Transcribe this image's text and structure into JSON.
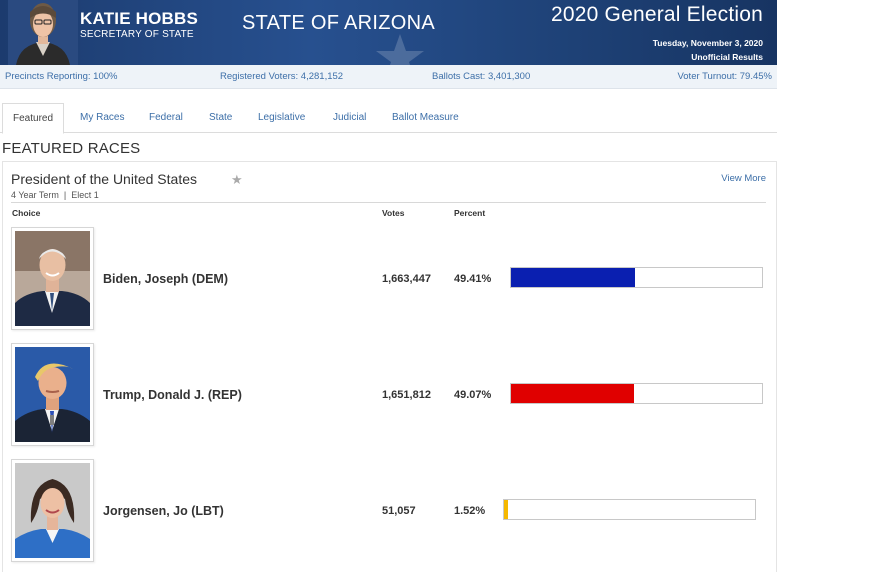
{
  "header": {
    "official_name": "KATIE HOBBS",
    "official_title": "SECRETARY OF STATE",
    "state": "STATE OF ARIZONA",
    "election": "2020 General Election",
    "date": "Tuesday, November 3, 2020",
    "status": "Unofficial Results"
  },
  "stats": {
    "precincts": "Precincts Reporting: 100%",
    "registered": "Registered Voters: 4,281,152",
    "ballots": "Ballots Cast: 3,401,300",
    "turnout": "Voter Turnout: 79.45%"
  },
  "tabs": [
    "Featured",
    "My Races",
    "Federal",
    "State",
    "Legislative",
    "Judicial",
    "Ballot Measure"
  ],
  "featured_heading": "FEATURED RACES",
  "race": {
    "title": "President of the United States",
    "star": "★",
    "meta": "4 Year Term  |  Elect 1",
    "view_more": "View More",
    "columns": {
      "choice": "Choice",
      "votes": "Votes",
      "percent": "Percent"
    },
    "candidates": [
      {
        "name": "Biden, Joseph (DEM)",
        "votes": "1,663,447",
        "percent": "49.41%",
        "share": 0.4941,
        "color": "#0a1fb0"
      },
      {
        "name": "Trump, Donald J. (REP)",
        "votes": "1,651,812",
        "percent": "49.07%",
        "share": 0.4907,
        "color": "#e00000"
      },
      {
        "name": "Jorgensen, Jo (LBT)",
        "votes": "51,057",
        "percent": "1.52%",
        "share": 0.0152,
        "color": "#f5b800"
      }
    ]
  }
}
